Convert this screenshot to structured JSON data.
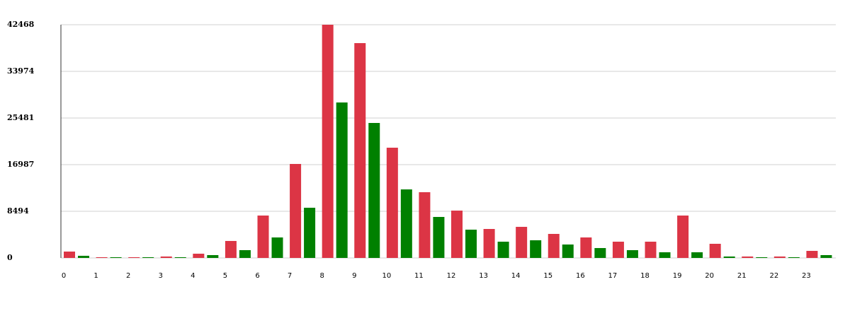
{
  "chart_data": {
    "type": "bar",
    "categories": [
      "0",
      "1",
      "2",
      "3",
      "4",
      "5",
      "6",
      "7",
      "8",
      "9",
      "10",
      "11",
      "12",
      "13",
      "14",
      "15",
      "16",
      "17",
      "18",
      "19",
      "20",
      "21",
      "22",
      "23"
    ],
    "series": [
      {
        "color": "#dc3545",
        "values": [
          1160,
          130,
          130,
          260,
          770,
          3090,
          7720,
          17115,
          42468,
          39120,
          20075,
          11970,
          8620,
          5275,
          5660,
          4375,
          3730,
          2960,
          2960,
          7720,
          2575,
          260,
          260,
          1285
        ]
      },
      {
        "color": "#008000",
        "values": [
          390,
          130,
          130,
          130,
          515,
          1420,
          3730,
          9140,
          28310,
          24580,
          12480,
          7465,
          5150,
          2960,
          3215,
          2445,
          1800,
          1415,
          1030,
          1030,
          260,
          130,
          130,
          515
        ]
      }
    ],
    "ylim": [
      0,
      42468
    ],
    "yticks": [
      0,
      8494,
      16987,
      25481,
      33974,
      42468
    ],
    "grid": true
  }
}
